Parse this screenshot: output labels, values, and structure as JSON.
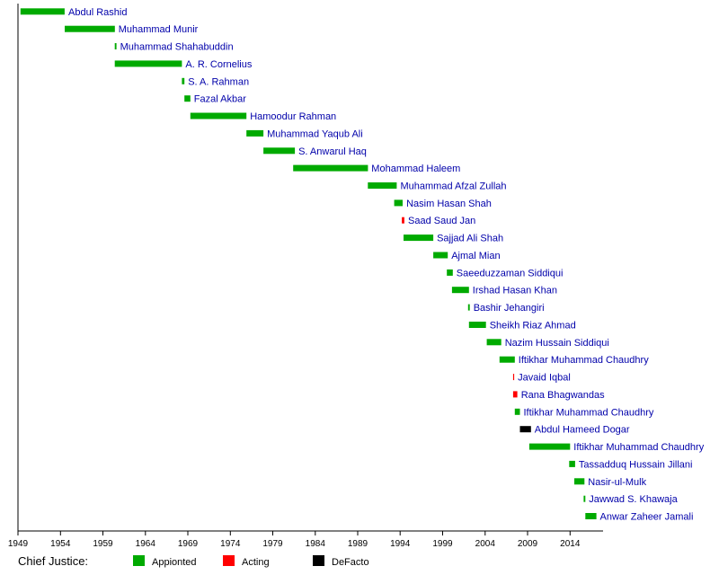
{
  "chart_data": {
    "type": "bar",
    "orientation": "horizontal-timeline",
    "title": "",
    "xlabel": "",
    "ylabel": "",
    "xlim": [
      1949,
      2017
    ],
    "xticks": [
      1949,
      1954,
      1959,
      1964,
      1969,
      1974,
      1979,
      1984,
      1989,
      1994,
      1999,
      2004,
      2009,
      2014
    ],
    "grid": false,
    "legend_placement": "bottom",
    "legend": {
      "title": "Chief Justice:",
      "items": [
        {
          "key": "appointed",
          "label": "Appionted",
          "color": "#00aa00"
        },
        {
          "key": "acting",
          "label": "Acting",
          "color": "#ff0000"
        },
        {
          "key": "defacto",
          "label": "DeFacto",
          "color": "#000000"
        }
      ]
    },
    "series": [
      {
        "name": "Abdul Rashid",
        "start": 1949.3,
        "end": 1954.5,
        "kind": "appointed"
      },
      {
        "name": "Muhammad Munir",
        "start": 1954.5,
        "end": 1960.4,
        "kind": "appointed"
      },
      {
        "name": "Muhammad Shahabuddin",
        "start": 1960.4,
        "end": 1960.6,
        "kind": "appointed"
      },
      {
        "name": "A. R. Cornelius",
        "start": 1960.4,
        "end": 1968.3,
        "kind": "appointed"
      },
      {
        "name": "S. A. Rahman",
        "start": 1968.3,
        "end": 1968.6,
        "kind": "appointed"
      },
      {
        "name": "Fazal Akbar",
        "start": 1968.6,
        "end": 1969.3,
        "kind": "appointed"
      },
      {
        "name": "Hamoodur Rahman",
        "start": 1969.3,
        "end": 1975.9,
        "kind": "appointed"
      },
      {
        "name": "Muhammad Yaqub Ali",
        "start": 1975.9,
        "end": 1977.9,
        "kind": "appointed"
      },
      {
        "name": "S. Anwarul Haq",
        "start": 1977.9,
        "end": 1981.6,
        "kind": "appointed"
      },
      {
        "name": "Mohammad Haleem",
        "start": 1981.4,
        "end": 1990.2,
        "kind": "appointed"
      },
      {
        "name": "Muhammad Afzal Zullah",
        "start": 1990.2,
        "end": 1993.6,
        "kind": "appointed"
      },
      {
        "name": "Nasim Hasan Shah",
        "start": 1993.3,
        "end": 1994.3,
        "kind": "appointed"
      },
      {
        "name": "Saad Saud Jan",
        "start": 1994.2,
        "end": 1994.5,
        "kind": "acting"
      },
      {
        "name": "Sajjad Ali Shah",
        "start": 1994.4,
        "end": 1997.9,
        "kind": "appointed"
      },
      {
        "name": "Ajmal Mian",
        "start": 1997.9,
        "end": 1999.6,
        "kind": "appointed"
      },
      {
        "name": "Saeeduzzaman Siddiqui",
        "start": 1999.5,
        "end": 2000.2,
        "kind": "appointed"
      },
      {
        "name": "Irshad Hasan Khan",
        "start": 2000.1,
        "end": 2002.1,
        "kind": "appointed"
      },
      {
        "name": "Bashir Jehangiri",
        "start": 2002.0,
        "end": 2002.2,
        "kind": "appointed"
      },
      {
        "name": "Sheikh Riaz Ahmad",
        "start": 2002.1,
        "end": 2004.1,
        "kind": "appointed"
      },
      {
        "name": "Nazim Hussain Siddiqui",
        "start": 2004.2,
        "end": 2005.9,
        "kind": "appointed"
      },
      {
        "name": "Iftikhar Muhammad Chaudhry",
        "start": 2005.7,
        "end": 2007.5,
        "kind": "appointed"
      },
      {
        "name": "Javaid Iqbal",
        "start": 2007.3,
        "end": 2007.4,
        "kind": "acting"
      },
      {
        "name": "Rana Bhagwandas",
        "start": 2007.3,
        "end": 2007.8,
        "kind": "acting"
      },
      {
        "name": "Iftikhar Muhammad Chaudhry",
        "start": 2007.5,
        "end": 2008.1,
        "kind": "appointed"
      },
      {
        "name": "Abdul Hameed Dogar",
        "start": 2008.1,
        "end": 2009.4,
        "kind": "defacto"
      },
      {
        "name": "Iftikhar Muhammad Chaudhry",
        "start": 2009.2,
        "end": 2014.0,
        "kind": "appointed"
      },
      {
        "name": "Tassadduq Hussain Jillani",
        "start": 2013.9,
        "end": 2014.6,
        "kind": "appointed"
      },
      {
        "name": "Nasir-ul-Mulk",
        "start": 2014.5,
        "end": 2015.7,
        "kind": "appointed"
      },
      {
        "name": "Jawwad S. Khawaja",
        "start": 2015.6,
        "end": 2015.8,
        "kind": "appointed"
      },
      {
        "name": "Anwar Zaheer Jamali",
        "start": 2015.8,
        "end": 2017.1,
        "kind": "appointed"
      }
    ]
  }
}
